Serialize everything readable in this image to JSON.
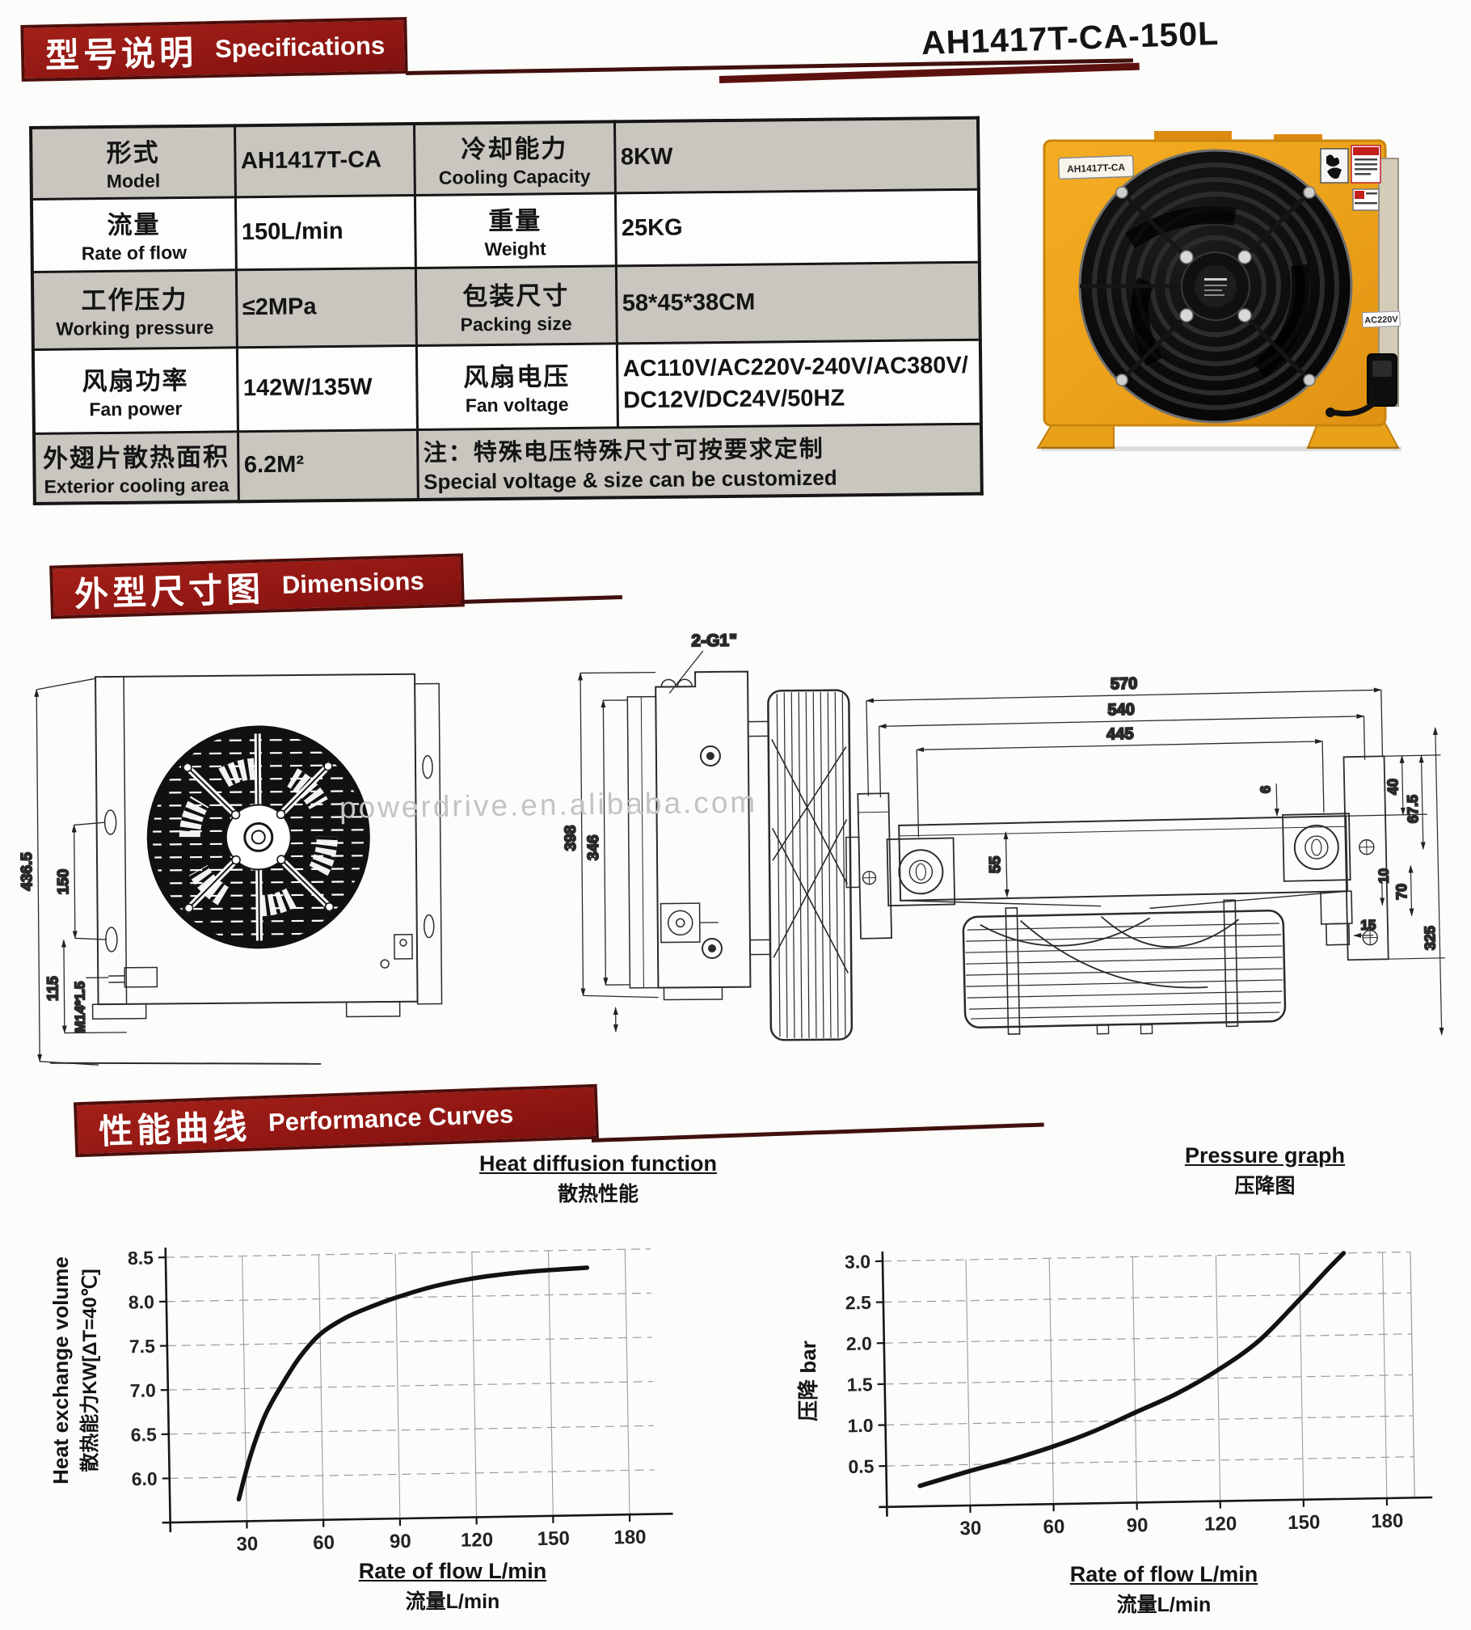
{
  "header": {
    "banner_zh": "型号说明",
    "banner_en": "Specifications",
    "model_title": "AH1417T-CA-150L"
  },
  "spec_table": {
    "rows": [
      {
        "cells": [
          {
            "zh": "形式",
            "en": "Model"
          },
          {
            "v": "AH1417T-CA"
          },
          {
            "zh": "冷却能力",
            "en": "Cooling Capacity"
          },
          {
            "v": "8KW"
          }
        ]
      },
      {
        "cells": [
          {
            "zh": "流量",
            "en": "Rate of flow"
          },
          {
            "v": "150L/min"
          },
          {
            "zh": "重量",
            "en": "Weight"
          },
          {
            "v": "25KG"
          }
        ]
      },
      {
        "cells": [
          {
            "zh": "工作压力",
            "en": "Working pressure"
          },
          {
            "v": "≤2MPa"
          },
          {
            "zh": "包装尺寸",
            "en": "Packing size"
          },
          {
            "v": "58*45*38CM"
          }
        ]
      },
      {
        "cells": [
          {
            "zh": "风扇功率",
            "en": "Fan power"
          },
          {
            "v": "142W/135W"
          },
          {
            "zh": "风扇电压",
            "en": "Fan voltage"
          },
          {
            "v": "AC110V/AC220V-240V/AC380V/\nDC12V/DC24V/50HZ"
          }
        ]
      },
      {
        "cells": [
          {
            "zh": "外翅片散热面积",
            "en": "Exterior cooling area"
          },
          {
            "v": "6.2M²"
          },
          {
            "zh": "注：特殊电压特殊尺寸可按要求定制",
            "en": "Special voltage & size can be customized",
            "note": true
          }
        ]
      }
    ]
  },
  "photo": {
    "model_label": "AH1417T-CA",
    "voltage_label": "AC220V"
  },
  "dimensions": {
    "banner_zh": "外型尺寸图",
    "banner_en": "Dimensions",
    "watermark": "powerdrive.en.alibaba.com",
    "front": {
      "total": "436.5",
      "span": "150",
      "lower": "115",
      "thread": "M14*1.5"
    },
    "side": {
      "ports": "2-G1\"",
      "height": "398",
      "core": "346"
    },
    "top": {
      "len_outer": "570",
      "len_mid": "540",
      "len_inner": "445",
      "gap": "6",
      "off1": "40",
      "off2": "67.5",
      "core_w": "55",
      "off3": "70",
      "depth": "325",
      "off4": "10",
      "off5": "15"
    }
  },
  "performance": {
    "banner_zh": "性能曲线",
    "banner_en": "Performance Curves"
  },
  "chart_data": [
    {
      "type": "line",
      "title": "Heat diffusion function",
      "subtitle": "散热性能",
      "ylabel_en": "Heat exchange volume",
      "ylabel_zh": "散热能力KW[ΔT=40℃]",
      "xlabel": "Rate of flow L/min",
      "xlabel_zh": "流量L/min",
      "xlim": [
        0,
        190
      ],
      "ylim": [
        5.5,
        8.5
      ],
      "xticks": [
        30,
        60,
        90,
        120,
        150,
        180
      ],
      "yticks": [
        6.0,
        6.5,
        7.0,
        7.5,
        8.0,
        8.5
      ],
      "grid": true,
      "legend_position": "none",
      "x": [
        27,
        32,
        38,
        45,
        52,
        60,
        70,
        80,
        90,
        105,
        120,
        135,
        150,
        165
      ],
      "y": [
        5.75,
        6.25,
        6.7,
        7.05,
        7.35,
        7.6,
        7.78,
        7.9,
        8.0,
        8.12,
        8.2,
        8.25,
        8.28,
        8.3
      ]
    },
    {
      "type": "line",
      "title": "Pressure graph",
      "subtitle": "压降图",
      "ylabel": "压降 bar",
      "xlabel": "Rate of flow L/min",
      "xlabel_zh": "流量L/min",
      "xlim": [
        0,
        190
      ],
      "ylim": [
        0,
        3.0
      ],
      "xticks": [
        30,
        60,
        90,
        120,
        150,
        180
      ],
      "yticks": [
        0.5,
        1.0,
        1.5,
        2.0,
        2.5,
        3.0
      ],
      "grid": true,
      "legend_position": "none",
      "x": [
        12,
        30,
        45,
        60,
        75,
        90,
        105,
        120,
        135,
        150,
        160,
        166
      ],
      "y": [
        0.25,
        0.42,
        0.55,
        0.7,
        0.88,
        1.1,
        1.32,
        1.6,
        1.95,
        2.45,
        2.8,
        3.0
      ]
    }
  ]
}
